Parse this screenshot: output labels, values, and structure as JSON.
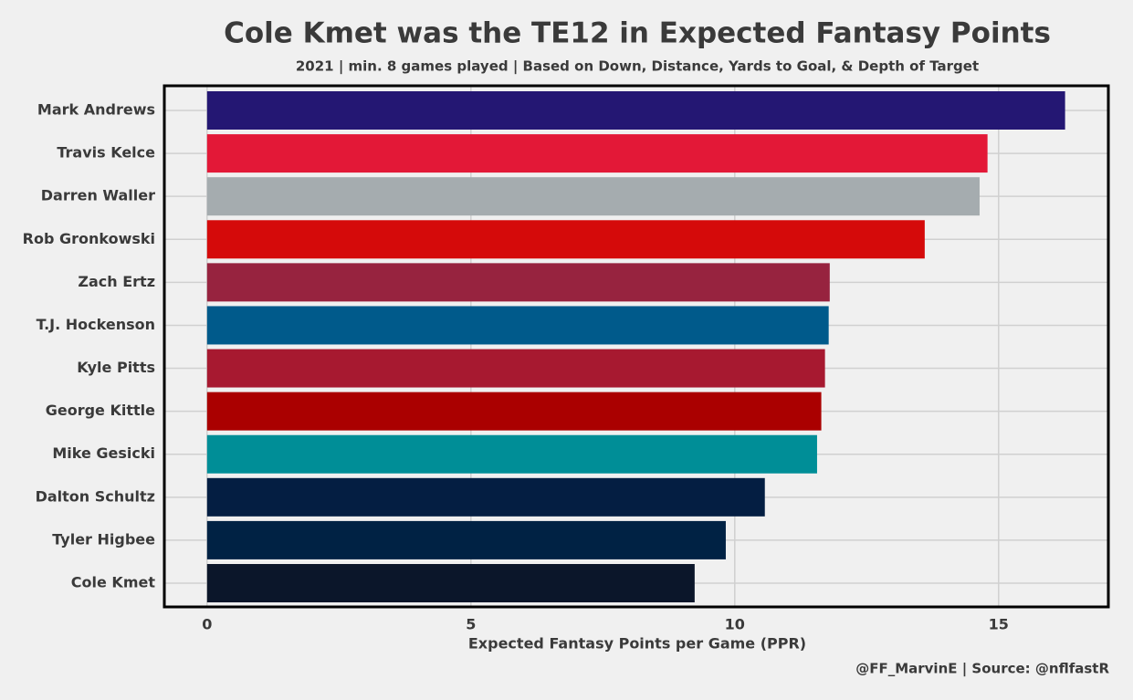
{
  "chart_data": {
    "type": "bar",
    "orientation": "horizontal",
    "title": "Cole Kmet was the TE12 in Expected Fantasy Points",
    "subtitle": "2021 | min. 8 games played | Based on Down, Distance, Yards to Goal, & Depth of Target",
    "xlabel": "Expected Fantasy Points per Game (PPR)",
    "caption": "@FF_MarvinE | Source: @nflfastR",
    "categories": [
      "Mark Andrews",
      "Travis Kelce",
      "Darren Waller",
      "Rob Gronkowski",
      "Zach Ertz",
      "T.J. Hockenson",
      "Kyle Pitts",
      "George Kittle",
      "Mike Gesicki",
      "Dalton Schultz",
      "Tyler Higbee",
      "Cole Kmet"
    ],
    "values": [
      16.26,
      14.79,
      14.64,
      13.6,
      11.8,
      11.78,
      11.71,
      11.64,
      11.56,
      10.57,
      9.83,
      9.24
    ],
    "colors": [
      "#241773",
      "#e31837",
      "#a5acaf",
      "#d50a0a",
      "#97233f",
      "#005a8b",
      "#a71930",
      "#aa0000",
      "#008e97",
      "#041e42",
      "#002244",
      "#0b162a"
    ],
    "xlim": [
      -0.81,
      17.08
    ],
    "xticks": [
      0,
      5,
      10,
      15
    ],
    "grid": true
  }
}
